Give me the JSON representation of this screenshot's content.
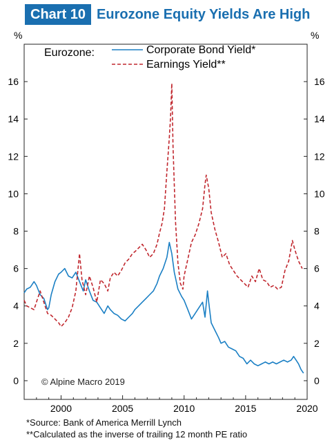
{
  "header": {
    "badge": "Chart 10",
    "title": "Eurozone Equity Yields Are High"
  },
  "chart_data": {
    "type": "line",
    "title": "Eurozone Equity Yields Are High",
    "xlabel": "",
    "ylabel": "%",
    "y2label": "%",
    "xlim": [
      1997.0,
      2020.0
    ],
    "ylim": [
      -1,
      18
    ],
    "xticks": [
      2000,
      2005,
      2010,
      2015,
      2020
    ],
    "yticks": [
      0,
      2,
      4,
      6,
      8,
      10,
      12,
      14,
      16
    ],
    "grid": false,
    "legend": {
      "placement": "top-left",
      "prefix": "Eurozone:"
    },
    "annotation": "© Alpine Macro 2019",
    "series": [
      {
        "name": "Corporate Bond Yield*",
        "color": "#1a7fc4",
        "style": "solid",
        "x": [
          1997.0,
          1997.2,
          1997.5,
          1997.8,
          1998.0,
          1998.3,
          1998.6,
          1998.9,
          1999.0,
          1999.2,
          1999.5,
          1999.8,
          2000.0,
          2000.3,
          2000.6,
          2000.9,
          2001.2,
          2001.5,
          2001.8,
          2002.0,
          2002.3,
          2002.6,
          2002.9,
          2003.2,
          2003.5,
          2003.8,
          2004.0,
          2004.3,
          2004.6,
          2004.9,
          2005.2,
          2005.5,
          2005.8,
          2006.0,
          2006.3,
          2006.6,
          2006.9,
          2007.2,
          2007.5,
          2007.8,
          2008.0,
          2008.3,
          2008.6,
          2008.8,
          2009.0,
          2009.2,
          2009.5,
          2009.8,
          2010.0,
          2010.3,
          2010.6,
          2010.9,
          2011.2,
          2011.5,
          2011.7,
          2011.9,
          2012.0,
          2012.2,
          2012.5,
          2012.8,
          2013.0,
          2013.3,
          2013.6,
          2013.9,
          2014.2,
          2014.5,
          2014.8,
          2015.1,
          2015.4,
          2015.7,
          2016.0,
          2016.3,
          2016.6,
          2016.9,
          2017.2,
          2017.5,
          2017.8,
          2018.1,
          2018.4,
          2018.7,
          2018.9,
          2019.1,
          2019.3,
          2019.5,
          2019.7
        ],
        "values": [
          4.7,
          4.9,
          5.0,
          5.3,
          5.1,
          4.6,
          4.4,
          3.8,
          3.9,
          4.6,
          5.3,
          5.7,
          5.8,
          6.0,
          5.6,
          5.5,
          5.8,
          5.3,
          4.8,
          5.4,
          4.8,
          4.3,
          4.2,
          3.9,
          3.6,
          4.0,
          3.8,
          3.6,
          3.5,
          3.3,
          3.2,
          3.4,
          3.6,
          3.8,
          4.0,
          4.2,
          4.4,
          4.6,
          4.8,
          5.2,
          5.6,
          6.0,
          6.6,
          7.4,
          6.8,
          5.8,
          4.9,
          4.5,
          4.3,
          3.8,
          3.3,
          3.6,
          3.9,
          4.2,
          3.4,
          4.8,
          4.2,
          3.1,
          2.7,
          2.3,
          2.0,
          2.1,
          1.8,
          1.7,
          1.6,
          1.3,
          1.2,
          0.9,
          1.1,
          0.9,
          0.8,
          0.9,
          1.0,
          0.9,
          1.0,
          0.9,
          1.0,
          1.1,
          1.0,
          1.1,
          1.3,
          1.1,
          0.9,
          0.6,
          0.4
        ]
      },
      {
        "name": "Earnings Yield**",
        "color": "#c0262d",
        "style": "dashed",
        "x": [
          1997.0,
          1997.2,
          1997.5,
          1997.8,
          1998.0,
          1998.3,
          1998.6,
          1998.9,
          1999.2,
          1999.5,
          1999.8,
          2000.0,
          2000.3,
          2000.6,
          2000.9,
          2001.2,
          2001.5,
          2001.7,
          2002.0,
          2002.3,
          2002.6,
          2002.9,
          2003.2,
          2003.5,
          2003.8,
          2004.0,
          2004.3,
          2004.6,
          2004.9,
          2005.2,
          2005.5,
          2005.8,
          2006.0,
          2006.3,
          2006.6,
          2006.9,
          2007.2,
          2007.5,
          2007.8,
          2008.0,
          2008.2,
          2008.4,
          2008.6,
          2008.8,
          2008.9,
          2009.0,
          2009.1,
          2009.3,
          2009.5,
          2009.7,
          2009.9,
          2010.0,
          2010.3,
          2010.6,
          2010.9,
          2011.2,
          2011.5,
          2011.7,
          2011.8,
          2012.0,
          2012.2,
          2012.5,
          2012.8,
          2013.1,
          2013.4,
          2013.7,
          2014.0,
          2014.3,
          2014.6,
          2014.9,
          2015.2,
          2015.5,
          2015.8,
          2016.1,
          2016.4,
          2016.7,
          2017.0,
          2017.3,
          2017.6,
          2017.9,
          2018.2,
          2018.5,
          2018.8,
          2019.0,
          2019.3,
          2019.6
        ],
        "values": [
          4.3,
          4.0,
          3.9,
          3.8,
          4.2,
          4.8,
          4.2,
          3.6,
          3.5,
          3.3,
          3.1,
          2.9,
          3.1,
          3.4,
          3.9,
          4.8,
          6.8,
          5.4,
          4.6,
          5.6,
          5.0,
          4.2,
          5.4,
          5.2,
          4.8,
          5.5,
          5.8,
          5.6,
          5.9,
          6.3,
          6.5,
          6.8,
          6.9,
          7.1,
          7.3,
          7.0,
          6.6,
          6.8,
          7.3,
          7.9,
          8.4,
          9.2,
          11.2,
          13.0,
          14.1,
          15.9,
          12.5,
          8.5,
          6.3,
          5.2,
          4.9,
          5.6,
          6.5,
          7.4,
          7.8,
          8.4,
          9.2,
          10.5,
          11.0,
          10.3,
          9.0,
          8.1,
          7.4,
          6.6,
          6.8,
          6.2,
          5.9,
          5.6,
          5.4,
          5.2,
          5.0,
          5.6,
          5.3,
          6.0,
          5.4,
          5.3,
          5.0,
          5.1,
          4.9,
          5.0,
          5.9,
          6.4,
          7.5,
          7.0,
          6.4,
          6.0
        ]
      }
    ]
  },
  "footnotes": {
    "source": "*Source: Bank of America Merrill Lynch",
    "note": "**Calculated as the inverse of trailing 12 month PE ratio"
  }
}
